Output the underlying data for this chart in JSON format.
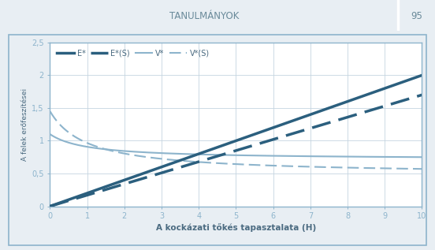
{
  "E_star_slope": 0.2,
  "E_star_S_slope": 0.17,
  "V_star_a": 0.385,
  "V_star_b": 1.0,
  "V_star_c": 0.715,
  "V_star_S_a": 0.968,
  "V_star_S_b": 1.0,
  "V_star_S_c": 0.482,
  "x_min": 0,
  "x_max": 10,
  "y_min": 0,
  "y_max": 2.5,
  "y_ticks": [
    0,
    0.5,
    1,
    1.5,
    2,
    2.5
  ],
  "x_ticks": [
    0,
    1,
    2,
    3,
    4,
    5,
    6,
    7,
    8,
    9,
    10
  ],
  "xlabel": "A kockázati tőkés tapasztalata (H)",
  "ylabel": "A felek erőfeszítései",
  "legend_labels": [
    "E*",
    "E*(S)",
    "V*",
    "V*(S)"
  ],
  "dark_blue": "#2b5f7e",
  "light_blue": "#8db4cc",
  "header_bg": "#b8ccd8",
  "header_text": "TANULMÁNYOK",
  "header_num": "95",
  "plot_bg": "#ffffff",
  "fig_bg": "#e8eef3",
  "outer_bg": "#dce6ec",
  "grid_color": "#c5d5e0",
  "tick_color": "#4a6a80",
  "border_color": "#8db4cc"
}
